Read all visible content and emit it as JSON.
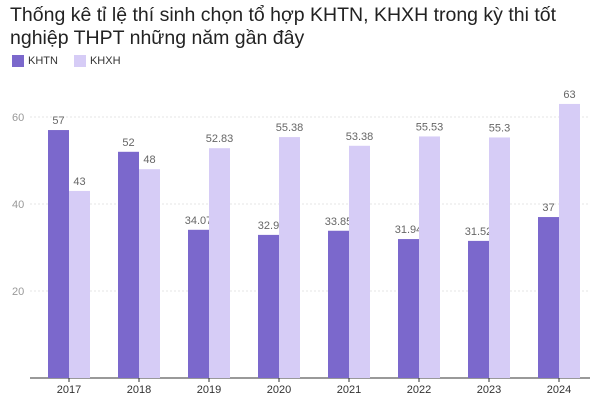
{
  "title": "Thống kê tỉ lệ thí sinh chọn tổ hợp KHTN, KHXH trong kỳ thi tốt nghiệp THPT những năm gần đây",
  "legend": [
    {
      "label": "KHTN",
      "color": "#7b68cc"
    },
    {
      "label": "KHXH",
      "color": "#d6ccf6"
    }
  ],
  "chart_data": {
    "type": "bar",
    "title": "Thống kê tỉ lệ thí sinh chọn tổ hợp KHTN, KHXH trong kỳ thi tốt nghiệp THPT những năm gần đây",
    "categories": [
      "2017",
      "2018",
      "2019",
      "2020",
      "2021",
      "2022",
      "2023",
      "2024"
    ],
    "series": [
      {
        "name": "KHTN",
        "color": "#7b68cc",
        "values": [
          57,
          52,
          34.07,
          32.9,
          33.85,
          31.94,
          31.52,
          37
        ]
      },
      {
        "name": "KHXH",
        "color": "#d6ccf6",
        "values": [
          43,
          48,
          52.83,
          55.38,
          53.38,
          55.53,
          55.3,
          63
        ]
      }
    ],
    "yticks": [
      20,
      40,
      60
    ],
    "ylim": [
      0,
      66
    ],
    "grid": true,
    "legend_position": "top-left"
  }
}
